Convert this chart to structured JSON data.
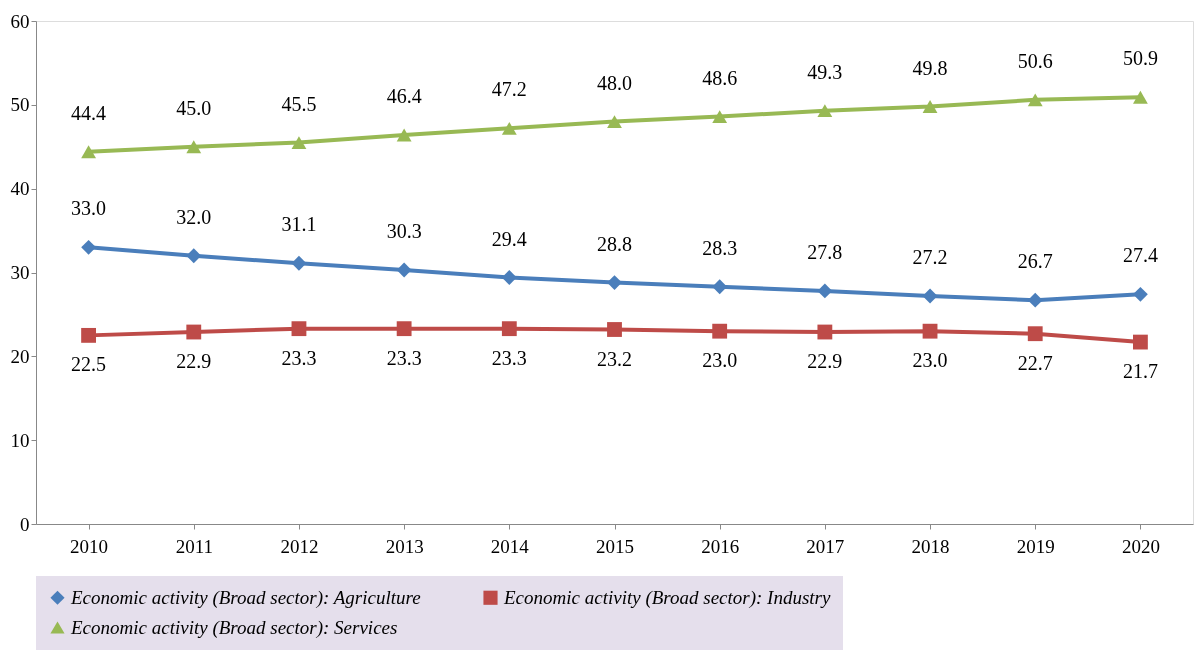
{
  "chart_data": {
    "type": "line",
    "categories": [
      "2010",
      "2011",
      "2012",
      "2013",
      "2014",
      "2015",
      "2016",
      "2017",
      "2018",
      "2019",
      "2020"
    ],
    "series": [
      {
        "name": "Economic activity (Broad sector): Agriculture",
        "color": "#4a7ebb",
        "marker": "diamond",
        "values": [
          33.0,
          32.0,
          31.1,
          30.3,
          29.4,
          28.8,
          28.3,
          27.8,
          27.2,
          26.7,
          27.4
        ],
        "value_labels": [
          "33.0",
          "32.0",
          "31.1",
          "30.3",
          "29.4",
          "28.8",
          "28.3",
          "27.8",
          "27.2",
          "26.7",
          "27.4"
        ]
      },
      {
        "name": "Economic activity (Broad sector): Industry",
        "color": "#be4b48",
        "marker": "square",
        "values": [
          22.5,
          22.9,
          23.3,
          23.3,
          23.3,
          23.2,
          23.0,
          22.9,
          23.0,
          22.7,
          21.7
        ],
        "value_labels": [
          "22.5",
          "22.9",
          "23.3",
          "23.3",
          "23.3",
          "23.2",
          "23.0",
          "22.9",
          "23.0",
          "22.7",
          "21.7"
        ]
      },
      {
        "name": "Economic activity (Broad sector): Services",
        "color": "#98b954",
        "marker": "triangle",
        "values": [
          44.4,
          45.0,
          45.5,
          46.4,
          47.2,
          48.0,
          48.6,
          49.3,
          49.8,
          50.6,
          50.9
        ],
        "value_labels": [
          "44.4",
          "45.0",
          "45.5",
          "46.4",
          "47.2",
          "48.0",
          "48.6",
          "49.3",
          "49.8",
          "50.6",
          "50.9"
        ]
      }
    ],
    "ylim": [
      0,
      60
    ],
    "yticks": [
      0,
      10,
      20,
      30,
      40,
      50,
      60
    ],
    "grid": false,
    "legend": "bottom",
    "line_style": "solid"
  }
}
